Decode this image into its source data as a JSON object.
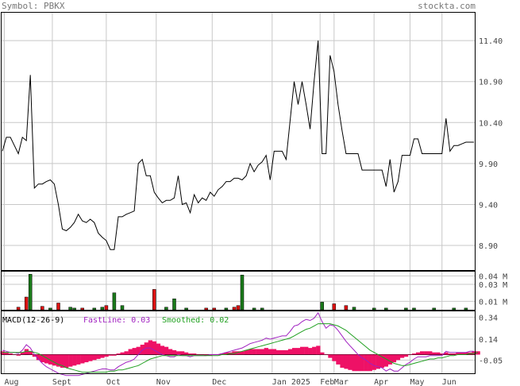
{
  "header": {
    "symbol_label": "Symbol: PBKX",
    "site": "stockta.com"
  },
  "colors": {
    "background": "#ffffff",
    "grid": "#c8c8c8",
    "price_line": "#000000",
    "volume_up": "#1a7a1a",
    "volume_down": "#dd1111",
    "macd_histogram": "#ee1166",
    "macd_fast": "#a020c0",
    "macd_smoothed": "#20a020",
    "label_text": "#444444"
  },
  "chart_data": [
    {
      "type": "line",
      "panel": "price",
      "title": "",
      "y_ticks": [
        8.9,
        9.4,
        9.9,
        10.4,
        10.9,
        11.4
      ],
      "ylim": [
        8.6,
        11.75
      ],
      "x_labels": [
        "Aug",
        "Sept",
        "Oct",
        "Nov",
        "Dec",
        "Jan 2025",
        "Feb",
        "Mar",
        "Apr",
        "May",
        "Jun"
      ],
      "grid": true,
      "series": [
        {
          "values": [
            10.05,
            10.22,
            10.22,
            10.12,
            10.02,
            10.22,
            10.18,
            10.98,
            9.6,
            9.65,
            9.65,
            9.68,
            9.7,
            9.65,
            9.4,
            9.1,
            9.08,
            9.12,
            9.18,
            9.28,
            9.2,
            9.18,
            9.22,
            9.18,
            9.05,
            9.0,
            8.96,
            8.85,
            8.85,
            9.25,
            9.25,
            9.28,
            9.3,
            9.32,
            9.9,
            9.95,
            9.75,
            9.75,
            9.55,
            9.48,
            9.42,
            9.45,
            9.45,
            9.48,
            9.75,
            9.4,
            9.42,
            9.3,
            9.52,
            9.42,
            9.48,
            9.45,
            9.55,
            9.5,
            9.58,
            9.62,
            9.68,
            9.68,
            9.72,
            9.72,
            9.7,
            9.75,
            9.9,
            9.8,
            9.88,
            9.92,
            10.0,
            9.7,
            10.05,
            10.05,
            10.05,
            9.95,
            10.42,
            10.9,
            10.62,
            10.9,
            10.62,
            10.32,
            10.9,
            11.4,
            10.02,
            10.02,
            11.22,
            11.02,
            10.62,
            10.3,
            10.02,
            10.02,
            10.02,
            10.02,
            9.82,
            9.82,
            9.82,
            9.82,
            9.82,
            9.82,
            9.62,
            9.95,
            9.55,
            9.68,
            10.0,
            10.0,
            10.0,
            10.2,
            10.2,
            10.02,
            10.02,
            10.02,
            10.02,
            10.02,
            10.02,
            10.45,
            10.05,
            10.12,
            10.12,
            10.14,
            10.16,
            10.16,
            10.16
          ]
        }
      ]
    },
    {
      "type": "bar",
      "panel": "volume",
      "y_ticks": [
        "0.01 M",
        "0.03 M",
        "0.04 M"
      ],
      "y_tick_values": [
        0.01,
        0.03,
        0.04
      ],
      "ylim": [
        0,
        0.046
      ],
      "bars": [
        {
          "x": 4,
          "value": 0.003,
          "dir": "down"
        },
        {
          "x": 6,
          "value": 0.015,
          "dir": "down"
        },
        {
          "x": 7,
          "value": 0.042,
          "dir": "up"
        },
        {
          "x": 10,
          "value": 0.004,
          "dir": "down"
        },
        {
          "x": 12,
          "value": 0.002,
          "dir": "up"
        },
        {
          "x": 14,
          "value": 0.008,
          "dir": "down"
        },
        {
          "x": 17,
          "value": 0.003,
          "dir": "up"
        },
        {
          "x": 18,
          "value": 0.002,
          "dir": "up"
        },
        {
          "x": 20,
          "value": 0.002,
          "dir": "down"
        },
        {
          "x": 23,
          "value": 0.002,
          "dir": "up"
        },
        {
          "x": 25,
          "value": 0.003,
          "dir": "up"
        },
        {
          "x": 26,
          "value": 0.005,
          "dir": "down"
        },
        {
          "x": 28,
          "value": 0.02,
          "dir": "up"
        },
        {
          "x": 30,
          "value": 0.005,
          "dir": "up"
        },
        {
          "x": 38,
          "value": 0.024,
          "dir": "down"
        },
        {
          "x": 41,
          "value": 0.003,
          "dir": "up"
        },
        {
          "x": 43,
          "value": 0.013,
          "dir": "up"
        },
        {
          "x": 46,
          "value": 0.002,
          "dir": "up"
        },
        {
          "x": 51,
          "value": 0.002,
          "dir": "down"
        },
        {
          "x": 53,
          "value": 0.002,
          "dir": "down"
        },
        {
          "x": 56,
          "value": 0.002,
          "dir": "up"
        },
        {
          "x": 58,
          "value": 0.003,
          "dir": "down"
        },
        {
          "x": 59,
          "value": 0.005,
          "dir": "down"
        },
        {
          "x": 60,
          "value": 0.041,
          "dir": "up"
        },
        {
          "x": 63,
          "value": 0.002,
          "dir": "up"
        },
        {
          "x": 65,
          "value": 0.002,
          "dir": "up"
        },
        {
          "x": 80,
          "value": 0.009,
          "dir": "up"
        },
        {
          "x": 83,
          "value": 0.007,
          "dir": "down"
        },
        {
          "x": 86,
          "value": 0.005,
          "dir": "down"
        },
        {
          "x": 88,
          "value": 0.003,
          "dir": "up"
        },
        {
          "x": 93,
          "value": 0.002,
          "dir": "up"
        },
        {
          "x": 96,
          "value": 0.002,
          "dir": "up"
        },
        {
          "x": 101,
          "value": 0.002,
          "dir": "up"
        },
        {
          "x": 103,
          "value": 0.002,
          "dir": "up"
        },
        {
          "x": 108,
          "value": 0.002,
          "dir": "up"
        },
        {
          "x": 113,
          "value": 0.002,
          "dir": "up"
        },
        {
          "x": 116,
          "value": 0.002,
          "dir": "up"
        }
      ]
    },
    {
      "type": "line",
      "panel": "macd",
      "legend": {
        "title": "MACD(12-26-9)",
        "fast_label": "FastLine: 0.03",
        "smoothed_label": "Smoothed: 0.02"
      },
      "y_ticks": [
        -0.05,
        0.14,
        0.34
      ],
      "y_tick_labels": [
        "-0.05",
        "0.14",
        "0.34"
      ],
      "ylim": [
        -0.17,
        0.4
      ],
      "histogram": [
        0.03,
        0.02,
        0.01,
        0.0,
        -0.01,
        0.02,
        0.05,
        0.03,
        -0.02,
        -0.05,
        -0.07,
        -0.08,
        -0.09,
        -0.1,
        -0.11,
        -0.12,
        -0.12,
        -0.11,
        -0.1,
        -0.09,
        -0.08,
        -0.07,
        -0.06,
        -0.05,
        -0.04,
        -0.03,
        -0.02,
        -0.01,
        -0.01,
        0.01,
        0.02,
        0.03,
        0.05,
        0.06,
        0.07,
        0.09,
        0.11,
        0.13,
        0.12,
        0.1,
        0.08,
        0.07,
        0.05,
        0.04,
        0.03,
        0.03,
        0.02,
        0.01,
        0.01,
        0.0,
        0.0,
        -0.01,
        -0.01,
        0.0,
        0.0,
        0.01,
        0.02,
        0.02,
        0.03,
        0.03,
        0.03,
        0.04,
        0.05,
        0.05,
        0.05,
        0.05,
        0.06,
        0.05,
        0.05,
        0.04,
        0.04,
        0.04,
        0.05,
        0.06,
        0.06,
        0.07,
        0.07,
        0.06,
        0.07,
        0.08,
        0.02,
        0.0,
        -0.03,
        -0.06,
        -0.09,
        -0.12,
        -0.13,
        -0.14,
        -0.15,
        -0.15,
        -0.15,
        -0.15,
        -0.15,
        -0.14,
        -0.13,
        -0.12,
        -0.11,
        -0.09,
        -0.07,
        -0.05,
        -0.03,
        -0.02,
        0.0,
        0.01,
        0.02,
        0.03,
        0.03,
        0.03,
        0.02,
        0.02,
        0.01,
        0.02,
        0.01,
        0.01,
        0.02,
        0.02,
        0.02,
        0.02,
        0.03,
        0.03
      ],
      "series": [
        {
          "name": "FastLine",
          "values": [
            0.04,
            0.03,
            0.02,
            0.02,
            0.01,
            0.04,
            0.09,
            0.06,
            0.0,
            -0.04,
            -0.08,
            -0.11,
            -0.13,
            -0.15,
            -0.17,
            -0.18,
            -0.19,
            -0.19,
            -0.19,
            -0.19,
            -0.18,
            -0.17,
            -0.16,
            -0.15,
            -0.14,
            -0.13,
            -0.13,
            -0.14,
            -0.14,
            -0.11,
            -0.09,
            -0.07,
            -0.06,
            -0.04,
            0.0,
            0.04,
            0.06,
            0.06,
            0.04,
            0.02,
            0.0,
            -0.01,
            -0.02,
            -0.02,
            0.0,
            -0.01,
            -0.01,
            -0.02,
            -0.01,
            -0.01,
            -0.01,
            -0.01,
            0.0,
            0.0,
            0.0,
            0.01,
            0.02,
            0.03,
            0.04,
            0.05,
            0.06,
            0.08,
            0.1,
            0.11,
            0.12,
            0.13,
            0.15,
            0.14,
            0.15,
            0.16,
            0.17,
            0.17,
            0.21,
            0.26,
            0.27,
            0.3,
            0.32,
            0.31,
            0.33,
            0.38,
            0.3,
            0.24,
            0.27,
            0.26,
            0.22,
            0.17,
            0.12,
            0.08,
            0.04,
            0.0,
            -0.03,
            -0.05,
            -0.08,
            -0.1,
            -0.11,
            -0.12,
            -0.15,
            -0.13,
            -0.15,
            -0.15,
            -0.12,
            -0.09,
            -0.07,
            -0.04,
            -0.02,
            -0.02,
            -0.02,
            -0.01,
            -0.01,
            -0.01,
            -0.01,
            0.03,
            0.02,
            0.02,
            0.02,
            0.02,
            0.02,
            0.03,
            0.03
          ]
        },
        {
          "name": "Smoothed",
          "values": [
            0.02,
            0.02,
            0.02,
            0.02,
            0.02,
            0.02,
            0.03,
            0.03,
            0.02,
            0.01,
            -0.01,
            -0.03,
            -0.05,
            -0.07,
            -0.09,
            -0.1,
            -0.12,
            -0.13,
            -0.14,
            -0.15,
            -0.16,
            -0.16,
            -0.16,
            -0.16,
            -0.16,
            -0.16,
            -0.16,
            -0.15,
            -0.15,
            -0.14,
            -0.14,
            -0.13,
            -0.12,
            -0.11,
            -0.1,
            -0.08,
            -0.06,
            -0.04,
            -0.03,
            -0.02,
            -0.01,
            -0.01,
            -0.01,
            -0.01,
            -0.01,
            -0.01,
            -0.01,
            -0.01,
            -0.01,
            -0.01,
            -0.01,
            -0.01,
            -0.01,
            -0.01,
            -0.01,
            0.0,
            0.0,
            0.01,
            0.01,
            0.02,
            0.03,
            0.04,
            0.05,
            0.06,
            0.07,
            0.08,
            0.09,
            0.1,
            0.11,
            0.12,
            0.13,
            0.14,
            0.15,
            0.17,
            0.19,
            0.21,
            0.23,
            0.24,
            0.26,
            0.28,
            0.28,
            0.28,
            0.28,
            0.27,
            0.26,
            0.24,
            0.22,
            0.19,
            0.16,
            0.13,
            0.1,
            0.07,
            0.04,
            0.02,
            0.0,
            -0.02,
            -0.04,
            -0.06,
            -0.08,
            -0.09,
            -0.1,
            -0.1,
            -0.09,
            -0.08,
            -0.07,
            -0.06,
            -0.05,
            -0.04,
            -0.04,
            -0.03,
            -0.03,
            -0.02,
            -0.01,
            -0.01,
            0.0,
            0.0,
            0.0,
            0.01,
            0.01,
            0.02
          ]
        }
      ]
    }
  ]
}
